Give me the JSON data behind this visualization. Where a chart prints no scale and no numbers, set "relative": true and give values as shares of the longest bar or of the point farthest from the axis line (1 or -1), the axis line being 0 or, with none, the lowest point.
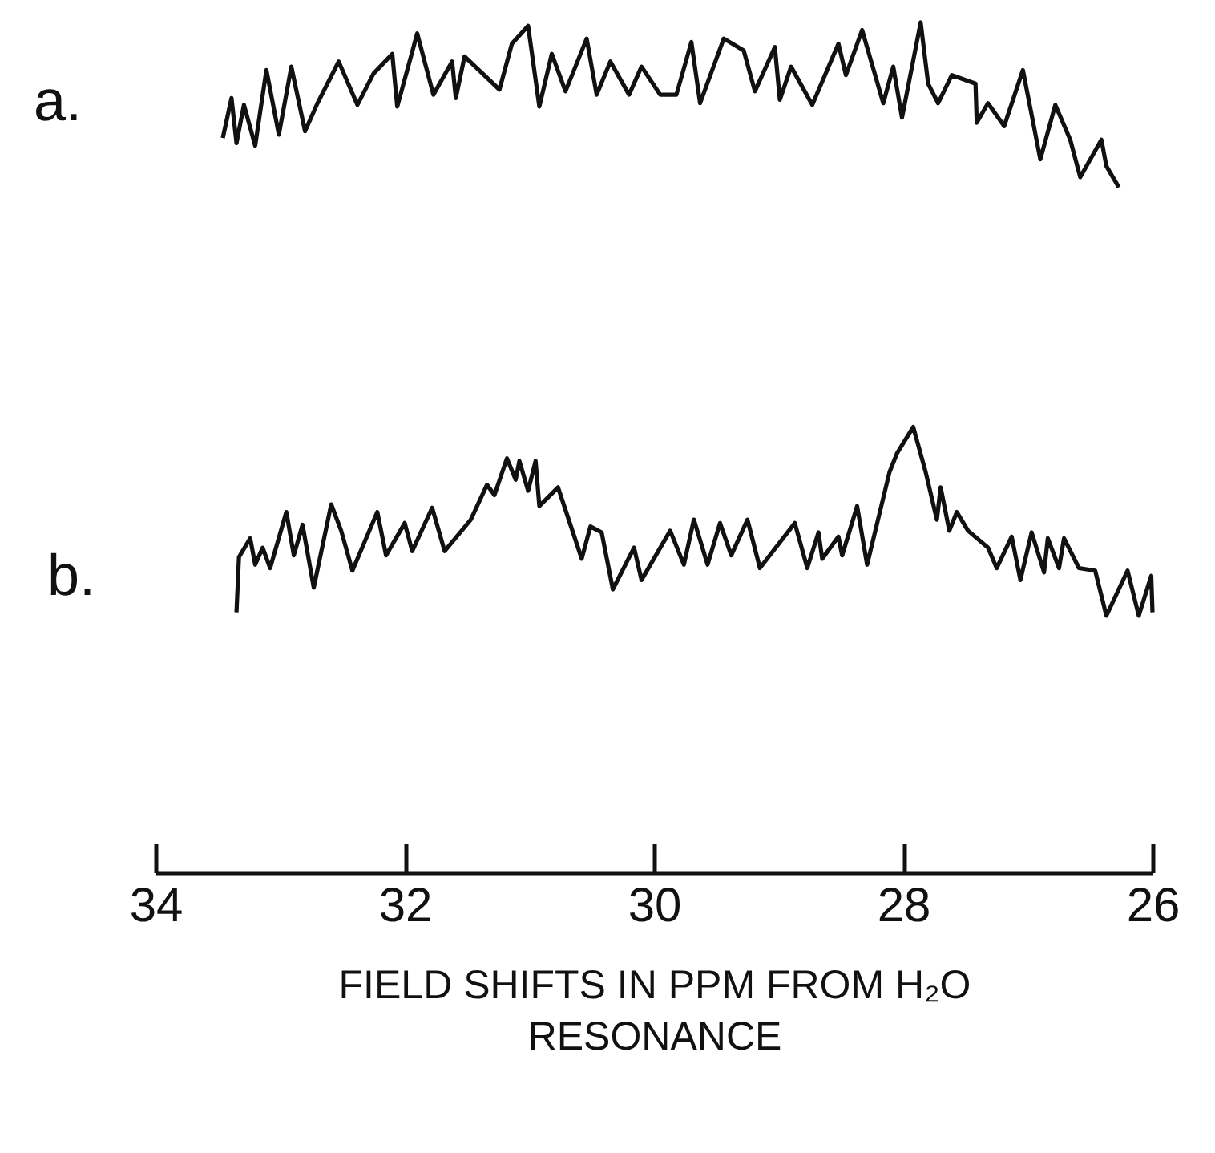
{
  "chart_data": {
    "type": "line",
    "relative": true,
    "xlim": [
      34,
      26
    ],
    "xticks": [
      34,
      32,
      30,
      28,
      26
    ],
    "xlabel": "FIELD SHIFTS IN PPM FROM H₂O\nRESONANCE",
    "series": [
      {
        "name": "a.",
        "color": "#111111",
        "x": [
          33.46,
          33.39,
          33.35,
          33.29,
          33.2,
          33.11,
          33.01,
          32.91,
          32.8,
          32.7,
          32.53,
          32.38,
          32.25,
          32.1,
          32.06,
          31.9,
          31.77,
          31.62,
          31.59,
          31.52,
          31.24,
          31.14,
          31.01,
          30.92,
          30.82,
          30.71,
          30.54,
          30.46,
          30.35,
          30.2,
          30.1,
          29.95,
          29.82,
          29.7,
          29.63,
          29.44,
          29.28,
          29.19,
          29.03,
          28.99,
          28.9,
          28.73,
          28.52,
          28.46,
          28.33,
          28.16,
          28.08,
          28.01,
          27.86,
          27.8,
          27.72,
          27.61,
          27.42,
          27.41,
          27.32,
          27.19,
          27.04,
          26.9,
          26.78,
          26.66,
          26.58,
          26.41,
          26.37,
          26.27
        ],
        "values": [
          0.864,
          0.911,
          0.858,
          0.903,
          0.855,
          0.944,
          0.868,
          0.948,
          0.872,
          0.905,
          0.954,
          0.903,
          0.94,
          0.963,
          0.901,
          0.987,
          0.915,
          0.954,
          0.911,
          0.96,
          0.921,
          0.975,
          0.996,
          0.901,
          0.963,
          0.919,
          0.981,
          0.915,
          0.954,
          0.915,
          0.948,
          0.915,
          0.915,
          0.977,
          0.905,
          0.981,
          0.967,
          0.919,
          0.971,
          0.909,
          0.948,
          0.903,
          0.975,
          0.938,
          0.991,
          0.905,
          0.948,
          0.888,
          1.0,
          0.928,
          0.905,
          0.938,
          0.928,
          0.882,
          0.905,
          0.878,
          0.944,
          0.839,
          0.903,
          0.862,
          0.818,
          0.862,
          0.831,
          0.806
        ]
      },
      {
        "name": "b.",
        "color": "#111111",
        "x": [
          33.35,
          33.33,
          33.24,
          33.2,
          33.14,
          33.08,
          32.95,
          32.89,
          32.82,
          32.73,
          32.59,
          32.51,
          32.42,
          32.22,
          32.15,
          32.0,
          31.94,
          31.78,
          31.68,
          31.47,
          31.34,
          31.28,
          31.18,
          31.11,
          31.08,
          31.01,
          30.95,
          30.92,
          30.77,
          30.58,
          30.51,
          30.42,
          30.33,
          30.16,
          30.1,
          29.87,
          29.76,
          29.68,
          29.57,
          29.47,
          29.38,
          29.25,
          29.15,
          28.87,
          28.77,
          28.68,
          28.65,
          28.52,
          28.49,
          28.37,
          28.29,
          28.11,
          28.05,
          27.92,
          27.82,
          27.73,
          27.7,
          27.63,
          27.57,
          27.48,
          27.32,
          27.25,
          27.13,
          27.06,
          26.97,
          26.87,
          26.84,
          26.75,
          26.71,
          26.59,
          26.46,
          26.37,
          26.2,
          26.11,
          26.01,
          26.0
        ],
        "values": [
          0.306,
          0.371,
          0.393,
          0.362,
          0.382,
          0.358,
          0.424,
          0.373,
          0.409,
          0.335,
          0.433,
          0.402,
          0.355,
          0.424,
          0.373,
          0.411,
          0.378,
          0.429,
          0.378,
          0.415,
          0.456,
          0.444,
          0.487,
          0.462,
          0.484,
          0.449,
          0.484,
          0.431,
          0.453,
          0.369,
          0.407,
          0.4,
          0.333,
          0.382,
          0.344,
          0.402,
          0.362,
          0.415,
          0.362,
          0.411,
          0.373,
          0.415,
          0.358,
          0.411,
          0.358,
          0.4,
          0.369,
          0.395,
          0.373,
          0.431,
          0.362,
          0.471,
          0.493,
          0.524,
          0.471,
          0.415,
          0.453,
          0.402,
          0.424,
          0.402,
          0.382,
          0.358,
          0.395,
          0.344,
          0.4,
          0.353,
          0.393,
          0.358,
          0.393,
          0.358,
          0.355,
          0.302,
          0.355,
          0.302,
          0.349,
          0.306
        ]
      }
    ]
  }
}
